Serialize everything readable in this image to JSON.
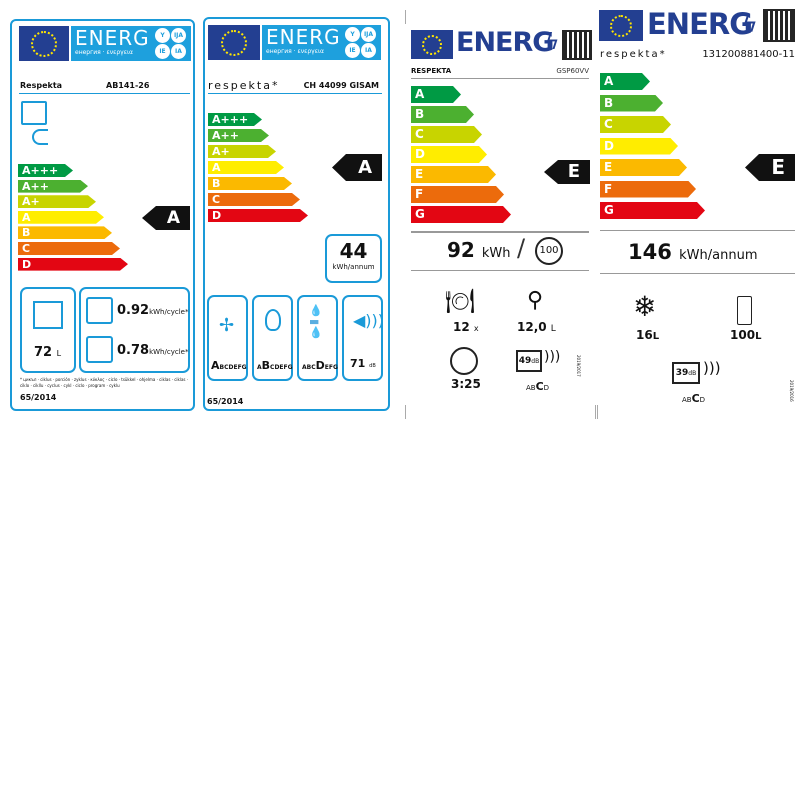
{
  "colors": {
    "green_dark": "#009a44",
    "green": "#4cb030",
    "lime": "#c8d400",
    "yellow": "#ffed00",
    "amber": "#fbb900",
    "orange": "#ec6b0c",
    "red": "#e30613",
    "frame_blue": "#1a9ad8",
    "eu_blue": "#233f91"
  },
  "oven": {
    "energ": "ENERG",
    "energ_sub": "енергия · ενεργεια",
    "lang_badges": [
      "Y",
      "IJA",
      "IE",
      "IA"
    ],
    "brand": "Respekta",
    "model": "AB141-26",
    "classes": [
      "A+++",
      "A++",
      "A+",
      "A",
      "B",
      "C",
      "D"
    ],
    "rating": "A",
    "volume": "72",
    "volume_unit": "L",
    "conv_kwh": "0.92",
    "conv_unit": "kWh/cycle*",
    "fan_kwh": "0.78",
    "fan_unit": "kWh/cycle*",
    "footnote": "* цикъл · ciklus · porción · zyklus · κύκλος · ciclo · tsükkel · ohjelma · ciklas · ciklas · ciklo · cikllu · cyclus · cykl · ciclo · program · cyklu",
    "regulation": "65/2014",
    "icons": [
      "oven-icon",
      "plug-icon"
    ]
  },
  "hood": {
    "energ": "ENERG",
    "energ_sub": "енергия · ενεργεια",
    "lang_badges": [
      "Y",
      "IJA",
      "IE",
      "IA"
    ],
    "brand": "respekta*",
    "model": "CH 44099 GISAM",
    "classes": [
      "A+++",
      "A++",
      "A+",
      "A",
      "B",
      "C",
      "D"
    ],
    "rating": "A",
    "annual_kwh": "44",
    "annual_unit": "kWh/annum",
    "fluid_class": {
      "pre": "",
      "sel": "A",
      "post": "BCDEFG"
    },
    "light_class": {
      "pre": "A",
      "sel": "B",
      "post": "CDEFG"
    },
    "grease_class": {
      "pre": "ABC",
      "sel": "D",
      "post": "EFG"
    },
    "noise": "71",
    "noise_unit": "dB",
    "regulation": "65/2014"
  },
  "dishwasher": {
    "energ": "ENERG",
    "brand": "RESPEKTA",
    "model": "GSP60VV",
    "classes": [
      "A",
      "B",
      "C",
      "D",
      "E",
      "F",
      "G"
    ],
    "rating": "E",
    "kwh": "92",
    "kwh_unit": "kWh",
    "cycles": "100",
    "place_settings": "12",
    "place_unit": "x",
    "water": "12,0",
    "water_unit": "L",
    "duration": "3:25",
    "noise": "49",
    "noise_unit": "dB",
    "noise_class": {
      "pre": "AB",
      "sel": "C",
      "post": "D"
    },
    "regulation": "2019/2017"
  },
  "fridge": {
    "energ": "ENERG",
    "brand": "respekta*",
    "model": "131200881400-11",
    "classes": [
      "A",
      "B",
      "C",
      "D",
      "E",
      "F",
      "G"
    ],
    "rating": "E",
    "annual_kwh": "146",
    "annual_unit": "kWh/annum",
    "freezer": "16",
    "freezer_unit": "L",
    "fridge": "100",
    "fridge_unit": "L",
    "noise": "39",
    "noise_unit": "dB",
    "noise_class": {
      "pre": "AB",
      "sel": "C",
      "post": "D"
    },
    "regulation": "2019/2016"
  }
}
